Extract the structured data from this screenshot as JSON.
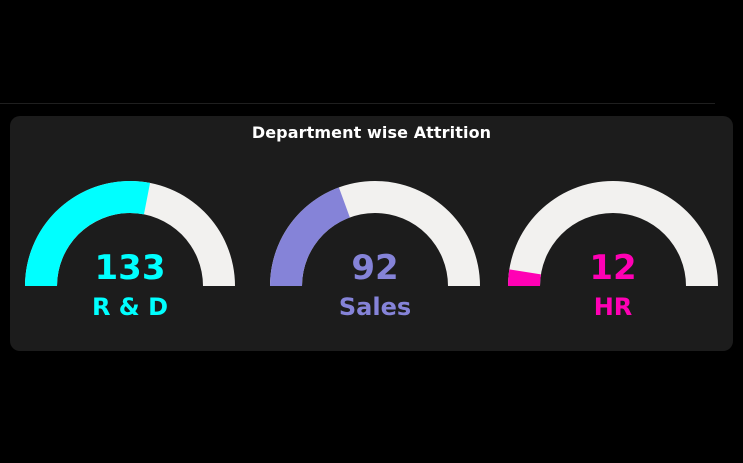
{
  "chart_data": {
    "type": "gauge",
    "title": "Department wise Attrition",
    "gauge_max": 237,
    "track_color": "#f2f1ef",
    "gauges": [
      {
        "category": "R & D",
        "value": 133,
        "color": "#00ffff"
      },
      {
        "category": "Sales",
        "value": 92,
        "color": "#8583d8"
      },
      {
        "category": "HR",
        "value": 12,
        "color": "#ff00b4"
      }
    ]
  }
}
